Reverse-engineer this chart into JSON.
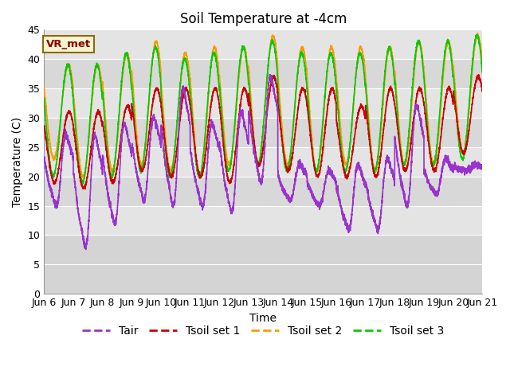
{
  "title": "Soil Temperature at -4cm",
  "xlabel": "Time",
  "ylabel": "Temperature (C)",
  "ylim": [
    0,
    45
  ],
  "tick_days": [
    6,
    7,
    8,
    9,
    10,
    11,
    12,
    13,
    14,
    15,
    16,
    17,
    18,
    19,
    20,
    21
  ],
  "colors": {
    "Tair": "#9933cc",
    "Tsoil_set1": "#cc0000",
    "Tsoil_set2": "#ff9900",
    "Tsoil_set3": "#00cc00"
  },
  "legend_labels": [
    "Tair",
    "Tsoil set 1",
    "Tsoil set 2",
    "Tsoil set 3"
  ],
  "vr_met_label": "VR_met",
  "background_color": "#ffffff",
  "band_colors": [
    "#e8e8e8",
    "#d8d8d8",
    "#e8e8e8",
    "#d8d8d8",
    "#e8e8e8",
    "#d8d8d8",
    "#e8e8e8",
    "#d8d8d8",
    "#c8c8c8"
  ],
  "title_fontsize": 12,
  "axis_fontsize": 10,
  "tick_fontsize": 9,
  "legend_fontsize": 10,
  "line_width": 1.2,
  "start_day": 6,
  "end_day": 21
}
